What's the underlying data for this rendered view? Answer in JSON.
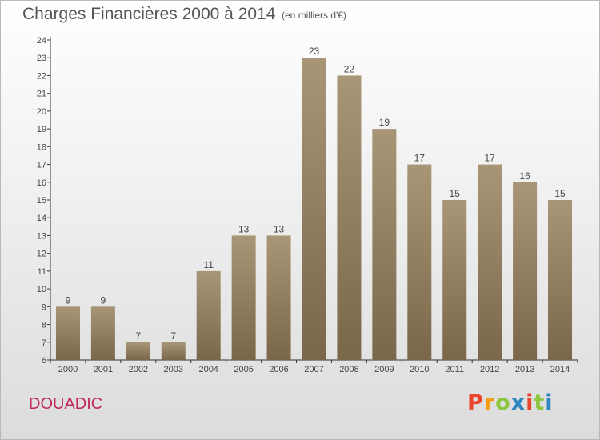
{
  "header": {
    "title": "Charges Financières 2000 à 2014",
    "subtitle": "(en milliers d'€)"
  },
  "footer": {
    "commune": "DOUADIC",
    "logo_text": "Proxiti",
    "logo_colors": [
      "#e8452c",
      "#f39c12",
      "#8cc63f",
      "#2e86c1",
      "#e8452c",
      "#8cc63f",
      "#2e86c1"
    ]
  },
  "colors": {
    "bar_top": "#a89677",
    "bar_bottom": "#7a6749",
    "commune_text": "#c2285b",
    "axis": "#333333"
  },
  "chart_data": {
    "type": "bar",
    "title": "Charges Financières 2000 à 2014",
    "subtitle": "(en milliers d'€)",
    "categories": [
      "2000",
      "2001",
      "2002",
      "2003",
      "2004",
      "2005",
      "2006",
      "2007",
      "2008",
      "2009",
      "2010",
      "2011",
      "2012",
      "2013",
      "2014"
    ],
    "values": [
      9,
      9,
      7,
      7,
      11,
      13,
      13,
      23,
      22,
      19,
      17,
      15,
      17,
      16,
      15
    ],
    "ylim": [
      6,
      24
    ],
    "yticks": [
      6,
      7,
      8,
      9,
      10,
      11,
      12,
      13,
      14,
      15,
      16,
      17,
      18,
      19,
      20,
      21,
      22,
      23,
      24
    ],
    "xlabel": "",
    "ylabel": "",
    "grid": false,
    "data_labels": true
  }
}
